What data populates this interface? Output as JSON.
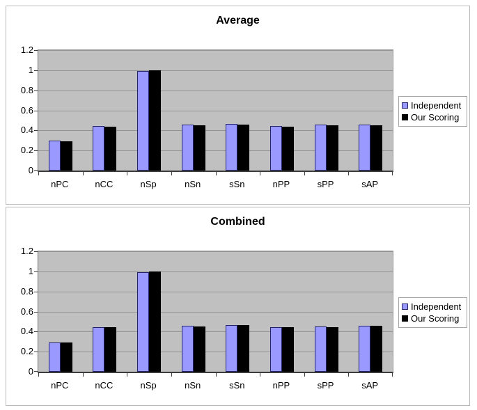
{
  "colors": {
    "plot_background": "#c0c0c0",
    "gridline": "#949494",
    "axis": "#3c3c3c",
    "series_independent_fill": "#9999ff",
    "series_independent_border": "#23236b",
    "series_our_scoring_fill": "#000000",
    "series_our_scoring_border": "#000000",
    "panel_border": "#b9b9b9",
    "legend_border": "#a6a6a6"
  },
  "chart_data": [
    {
      "type": "bar",
      "title": "Average",
      "categories": [
        "nPC",
        "nCC",
        "nSp",
        "nSn",
        "sSn",
        "nPP",
        "sPP",
        "sAP"
      ],
      "series": [
        {
          "name": "Independent",
          "values": [
            0.3,
            0.445,
            0.99,
            0.455,
            0.465,
            0.445,
            0.455,
            0.46
          ]
        },
        {
          "name": "Our Scoring",
          "values": [
            0.29,
            0.44,
            1.0,
            0.45,
            0.457,
            0.44,
            0.45,
            0.453
          ]
        }
      ],
      "xlabel": "",
      "ylabel": "",
      "ylim": [
        0,
        1.2
      ],
      "yticks": [
        "0",
        "0.2",
        "0.4",
        "0.6",
        "0.8",
        "1",
        "1.2"
      ],
      "grid": true,
      "legend_position": "right"
    },
    {
      "type": "bar",
      "title": "Combined",
      "categories": [
        "nPC",
        "nCC",
        "nSp",
        "nSn",
        "sSn",
        "nPP",
        "sPP",
        "sAP"
      ],
      "series": [
        {
          "name": "Independent",
          "values": [
            0.29,
            0.445,
            0.99,
            0.457,
            0.467,
            0.445,
            0.45,
            0.457
          ]
        },
        {
          "name": "Our Scoring",
          "values": [
            0.288,
            0.444,
            1.0,
            0.452,
            0.462,
            0.442,
            0.447,
            0.455
          ]
        }
      ],
      "xlabel": "",
      "ylabel": "",
      "ylim": [
        0,
        1.2
      ],
      "yticks": [
        "0",
        "0.2",
        "0.4",
        "0.6",
        "0.8",
        "1",
        "1.2"
      ],
      "grid": true,
      "legend_position": "right"
    }
  ]
}
